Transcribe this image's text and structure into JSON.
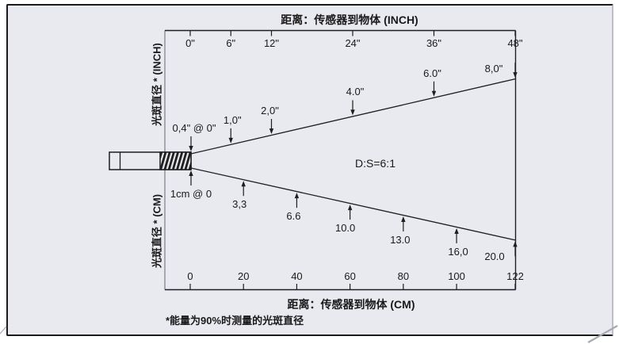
{
  "colors": {
    "panel_background": "#e9e9f0",
    "line": "#1e1e1e",
    "axis_left_gray": "#98989f",
    "text": "#1a1a1a",
    "corner_curl": "#a8a8b2"
  },
  "chart_data": {
    "type": "line",
    "ratio_label": "D:S=6:1",
    "footnote": "*能量为90%时测量的光斑直径",
    "ylabel_upper": "光斑直径 * (INCH)",
    "ylabel_lower": "光斑直径 * (CM)",
    "x_axis_top": {
      "label": "距离：传感器到物体 (INCH)",
      "unit": "inch",
      "tick_labels": [
        "0\"",
        "6\"",
        "12\"",
        "24\"",
        "36\"",
        "48\""
      ],
      "tick_values": [
        0,
        6,
        12,
        24,
        36,
        48
      ],
      "range": [
        0,
        48
      ]
    },
    "x_axis_bottom": {
      "label": "距离：传感器到物体 (CM)",
      "unit": "cm",
      "tick_labels": [
        "0",
        "20",
        "40",
        "60",
        "80",
        "100",
        "122"
      ],
      "tick_values": [
        0,
        20,
        40,
        60,
        80,
        100,
        122
      ],
      "range": [
        0,
        122
      ]
    },
    "series": [
      {
        "name": "spot-diameter-inch",
        "distances": [
          0,
          6,
          12,
          24,
          36,
          48
        ],
        "diameters": [
          0.4,
          1.0,
          2.0,
          4.0,
          6.0,
          8.0
        ],
        "point_labels": [
          "0,4\" @ 0\"",
          "1,0\"",
          "2,0\"",
          "4.0\"",
          "6.0\"",
          "8,0\""
        ]
      },
      {
        "name": "spot-diameter-cm",
        "distances": [
          0,
          20,
          40,
          60,
          80,
          100,
          122
        ],
        "diameters": [
          1,
          3.3,
          6.6,
          10.0,
          13.0,
          16.0,
          20.0
        ],
        "point_labels": [
          "1cm @ 0",
          "3,3",
          "6.6",
          "10.0",
          "13.0",
          "16,0",
          "20.0"
        ]
      }
    ]
  }
}
